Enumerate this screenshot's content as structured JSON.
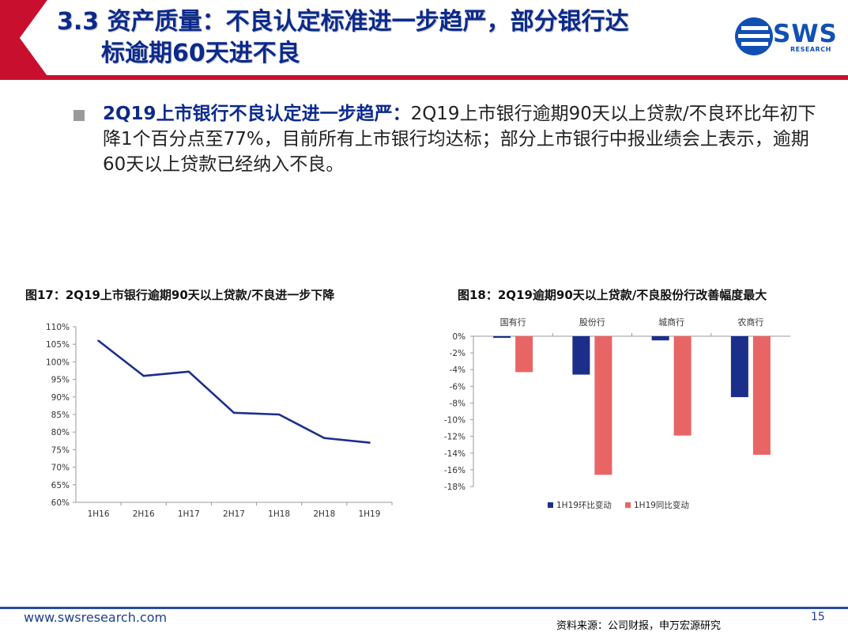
{
  "header": {
    "title_line1": "3.3 资产质量：不良认定标准进一步趋严，部分银行达",
    "title_line2": "标逾期60天进不良",
    "logo_text": "SWS",
    "logo_subtext": "RESEARCH",
    "accent_color": "#c8102e",
    "title_color": "#0b2a8c"
  },
  "bullet": {
    "lead": "2Q19上市银行不良认定进一步趋严：",
    "body": "2Q19上市银行逾期90天以上贷款/不良环比年初下降1个百分点至77%，目前所有上市银行均达标；部分上市银行中报业绩会上表示，逾期60天以上贷款已经纳入不良。"
  },
  "figures": {
    "fig17_title": "图17：2Q19上市银行逾期90天以上贷款/不良进一步下降",
    "fig18_title": "图18：2Q19逾期90天以上贷款/不良股份行改善幅度最大"
  },
  "chart_data": [
    {
      "type": "line",
      "title": "图17：2Q19上市银行逾期90天以上贷款/不良进一步下降",
      "categories": [
        "1H16",
        "2H16",
        "1H17",
        "2H17",
        "1H18",
        "2H18",
        "1H19"
      ],
      "series": [
        {
          "values": [
            106.0,
            96.0,
            97.2,
            85.5,
            85.0,
            78.3,
            77.0
          ],
          "color": "#1b2f8a"
        }
      ],
      "ylim": [
        60,
        110
      ],
      "yticks": [
        "60%",
        "65%",
        "70%",
        "75%",
        "80%",
        "85%",
        "90%",
        "95%",
        "100%",
        "105%",
        "110%"
      ],
      "grid": false
    },
    {
      "type": "bar",
      "title": "图18：2Q19逾期90天以上贷款/不良股份行改善幅度最大",
      "categories": [
        "国有行",
        "股份行",
        "城商行",
        "农商行"
      ],
      "series": [
        {
          "name": "1H19环比变动",
          "values": [
            -0.2,
            -4.6,
            -0.5,
            -7.3
          ],
          "color": "#1b2f8a"
        },
        {
          "name": "1H19同比变动",
          "values": [
            -4.3,
            -16.6,
            -11.9,
            -14.2
          ],
          "color": "#e86565"
        }
      ],
      "ylim": [
        -18,
        0
      ],
      "yticks": [
        "0%",
        "-2%",
        "-4%",
        "-6%",
        "-8%",
        "-10%",
        "-12%",
        "-14%",
        "-16%",
        "-18%"
      ],
      "legend": "bottom",
      "grid": false
    }
  ],
  "footer": {
    "url": "www.swsresearch.com",
    "source": "资料来源：公司财报，申万宏源研究",
    "page": "15"
  }
}
